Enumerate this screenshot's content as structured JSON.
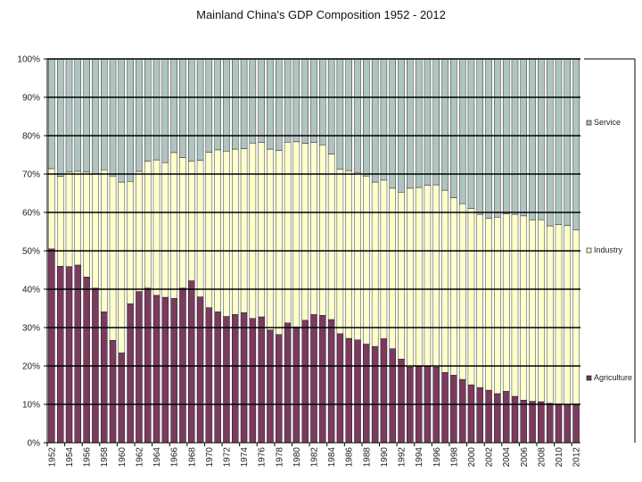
{
  "chart_data": {
    "type": "bar",
    "stacked": true,
    "percent_stacked": true,
    "title": "Mainland China's GDP Composition 1952 - 2012",
    "xlabel": "",
    "ylabel": "",
    "ylim": [
      0,
      100
    ],
    "y_ticks": [
      "0%",
      "10%",
      "20%",
      "30%",
      "40%",
      "50%",
      "60%",
      "70%",
      "80%",
      "90%",
      "100%"
    ],
    "x_tick_labels": [
      "1952",
      "1954",
      "1956",
      "1958",
      "1960",
      "1962",
      "1964",
      "1966",
      "1968",
      "1970",
      "1972",
      "1974",
      "1976",
      "1978",
      "1980",
      "1982",
      "1984",
      "1986",
      "1988",
      "1990",
      "1992",
      "1994",
      "1996",
      "1998",
      "2000",
      "2002",
      "2004",
      "2006",
      "2008",
      "2010",
      "2012"
    ],
    "grid": true,
    "legend_position": "right",
    "categories": [
      "1952",
      "1953",
      "1954",
      "1955",
      "1956",
      "1957",
      "1958",
      "1959",
      "1960",
      "1961",
      "1962",
      "1963",
      "1964",
      "1965",
      "1966",
      "1967",
      "1968",
      "1969",
      "1970",
      "1971",
      "1972",
      "1973",
      "1974",
      "1975",
      "1976",
      "1977",
      "1978",
      "1979",
      "1980",
      "1981",
      "1982",
      "1983",
      "1984",
      "1985",
      "1986",
      "1987",
      "1988",
      "1989",
      "1990",
      "1991",
      "1992",
      "1993",
      "1994",
      "1995",
      "1996",
      "1997",
      "1998",
      "1999",
      "2000",
      "2001",
      "2002",
      "2003",
      "2004",
      "2005",
      "2006",
      "2007",
      "2008",
      "2009",
      "2010",
      "2011",
      "2012"
    ],
    "series": [
      {
        "name": "Agriculture",
        "color": "#7a3b5c",
        "values": [
          50.5,
          46,
          45.9,
          46.3,
          43.2,
          40.3,
          34.1,
          26.7,
          23.4,
          36.2,
          39.4,
          40.3,
          38.4,
          37.9,
          37.6,
          40.3,
          42.2,
          38,
          35.2,
          34.1,
          32.9,
          33.4,
          33.9,
          32.4,
          32.8,
          29.4,
          28.2,
          31.2,
          30.2,
          31.9,
          33.4,
          33.2,
          32.1,
          28.4,
          27.2,
          26.8,
          25.7,
          25.1,
          27.1,
          24.5,
          21.8,
          19.7,
          19.9,
          19.9,
          19.7,
          18.3,
          17.6,
          16.5,
          15.1,
          14.4,
          13.7,
          12.8,
          13.4,
          12.1,
          11.1,
          10.8,
          10.7,
          10.3,
          10.1,
          10,
          10.1
        ]
      },
      {
        "name": "Industry",
        "color": "#ffffcc",
        "values": [
          20.9,
          23.4,
          24.6,
          24.4,
          27.3,
          29.7,
          37.0,
          42.8,
          44.5,
          31.9,
          31.3,
          33.0,
          35.3,
          35.1,
          38.0,
          34.0,
          31.2,
          35.6,
          40.5,
          42.2,
          43.1,
          43.1,
          42.7,
          45.7,
          45.4,
          47.1,
          47.9,
          47.1,
          48.2,
          46.1,
          44.8,
          44.4,
          43.1,
          42.9,
          43.7,
          43.6,
          43.8,
          42.8,
          41.3,
          41.8,
          43.5,
          46.6,
          46.6,
          47.2,
          47.5,
          47.5,
          46.2,
          45.8,
          45.9,
          45.1,
          44.8,
          46.0,
          46.2,
          47.4,
          48.0,
          47.3,
          47.4,
          46.2,
          46.7,
          46.6,
          45.3
        ]
      },
      {
        "name": "Service",
        "color": "#b0c4c0",
        "values": [
          28.6,
          30.6,
          29.5,
          29.3,
          29.5,
          30.0,
          28.9,
          30.5,
          32.1,
          31.9,
          29.3,
          26.7,
          26.3,
          27.0,
          24.4,
          25.7,
          26.6,
          26.4,
          24.3,
          23.7,
          24.0,
          23.5,
          23.4,
          21.9,
          21.8,
          23.5,
          23.9,
          21.7,
          21.6,
          22.0,
          21.8,
          22.4,
          24.8,
          28.7,
          29.1,
          29.6,
          30.5,
          32.1,
          31.6,
          33.7,
          34.7,
          33.7,
          33.5,
          32.9,
          32.8,
          34.2,
          36.2,
          37.7,
          39.0,
          40.5,
          41.5,
          41.2,
          40.4,
          40.5,
          40.9,
          41.9,
          41.9,
          43.5,
          43.2,
          43.4,
          44.6
        ]
      }
    ]
  }
}
